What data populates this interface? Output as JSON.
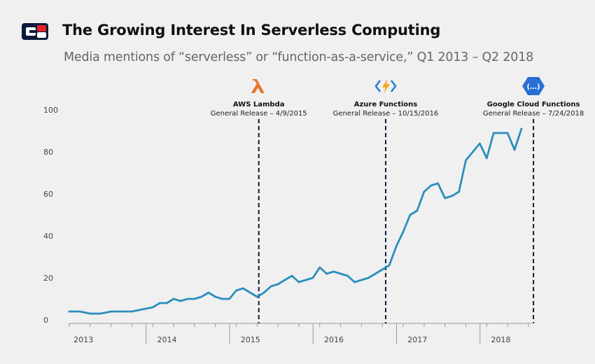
{
  "header": {
    "title": "The Growing Interest In Serverless Computing",
    "subtitle": "Media mentions of “serverless” or “function-as-a-service,” Q1 2013 – Q2 2018",
    "logo_colors": {
      "dark": "#0c1b3a",
      "red": "#e8202a"
    }
  },
  "chart_data": {
    "type": "line",
    "title": "",
    "xlabel": "",
    "ylabel": "",
    "ylim": [
      0,
      100
    ],
    "yticks": [
      0,
      20,
      40,
      60,
      80,
      100
    ],
    "xlim": [
      2013.0,
      2018.417
    ],
    "xticks": [
      {
        "label": "2013",
        "x": 2013.17
      },
      {
        "label": "2014",
        "x": 2014.17
      },
      {
        "label": "2015",
        "x": 2015.17
      },
      {
        "label": "2016",
        "x": 2016.17
      },
      {
        "label": "2017",
        "x": 2017.17
      },
      {
        "label": "2018",
        "x": 2018.17
      }
    ],
    "grid": false,
    "line_color": "#2a8fbd",
    "series": [
      {
        "x": [
          2013.0,
          2013.125,
          2013.25,
          2013.375,
          2013.5,
          2013.625,
          2013.75,
          2013.875,
          2014.0,
          2014.083,
          2014.167,
          2014.25,
          2014.333,
          2014.417,
          2014.5,
          2014.583,
          2014.667,
          2014.75,
          2014.833,
          2014.917,
          2015.0,
          2015.083,
          2015.167,
          2015.25,
          2015.333,
          2015.417,
          2015.5,
          2015.583,
          2015.667,
          2015.75,
          2015.833,
          2015.917,
          2016.0,
          2016.083,
          2016.167,
          2016.25,
          2016.333,
          2016.417,
          2016.5,
          2016.583,
          2016.667,
          2016.75,
          2016.833,
          2016.917,
          2017.0,
          2017.083,
          2017.167,
          2017.25,
          2017.333,
          2017.417,
          2017.5,
          2017.583,
          2017.667,
          2017.75,
          2017.833,
          2017.917,
          2018.0,
          2018.083,
          2018.167,
          2018.25,
          2018.333,
          2018.417
        ],
        "values": [
          4,
          4,
          3,
          3,
          4,
          4,
          4,
          5,
          6,
          8,
          8,
          10,
          9,
          10,
          10,
          11,
          13,
          11,
          10,
          10,
          14,
          15,
          13,
          11,
          13,
          16,
          17,
          19,
          21,
          18,
          19,
          20,
          25,
          22,
          23,
          22,
          21,
          18,
          19,
          20,
          22,
          24,
          26,
          35,
          42,
          50,
          52,
          61,
          64,
          65,
          58,
          59,
          61,
          76,
          80,
          84,
          77,
          89,
          89,
          89,
          81,
          91
        ]
      }
    ],
    "annotations": [
      {
        "name": "AWS Lambda",
        "sub": "General Release – 4/9/2015",
        "x": 2015.27,
        "icon": "lambda-icon",
        "color": "#e8722a"
      },
      {
        "name": "Azure Functions",
        "sub": "General Release – 10/15/2016",
        "x": 2016.79,
        "icon": "azure-functions-icon",
        "color": "#2a7fd4"
      },
      {
        "name": "Google Cloud Functions",
        "sub": "General Release – 7/24/2018",
        "x": 2018.56,
        "icon": "google-cloud-functions-icon",
        "color": "#2a6fd4"
      }
    ]
  }
}
